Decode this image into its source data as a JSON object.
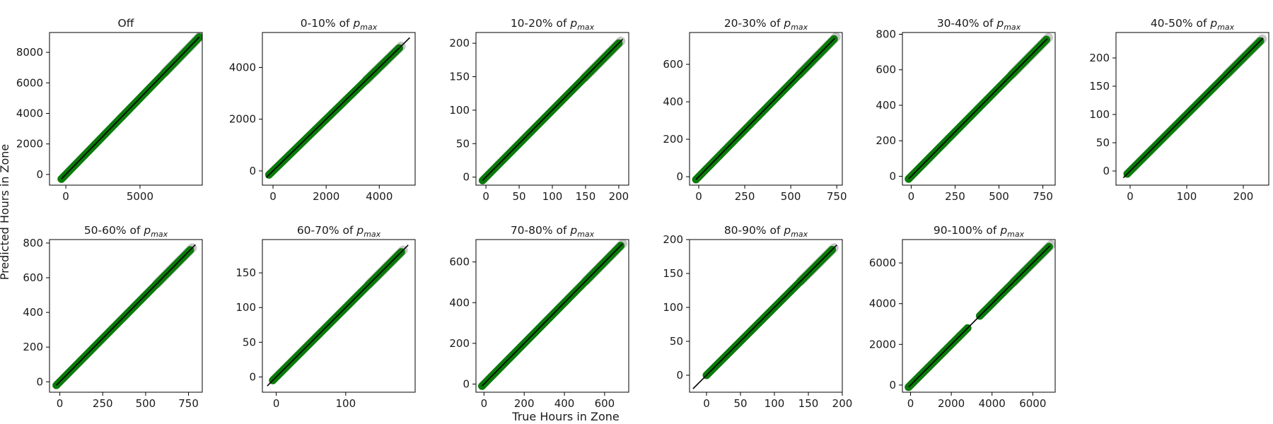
{
  "figure": {
    "xlabel": "True Hours in Zone",
    "ylabel": "Predicted Hours in Zone"
  },
  "colors": {
    "points": "#0a7a0a",
    "band": "#b0b0b0",
    "line": "#000000",
    "frame": "#000000"
  },
  "chart_data": [
    {
      "type": "scatter",
      "title": "Off",
      "title_prefix": "Off",
      "title_sub": "",
      "xlim": [
        -1100,
        9200
      ],
      "ylim": [
        -700,
        9300
      ],
      "xticks": [
        0,
        5000
      ],
      "yticks": [
        0,
        2000,
        4000,
        6000,
        8000
      ],
      "range": [
        -300,
        9000
      ],
      "line_range": [
        -300,
        9000
      ]
    },
    {
      "type": "scatter",
      "title": "0-10% of p_max",
      "title_prefix": "0-10% of ",
      "title_sub": "max",
      "xlim": [
        -400,
        5350
      ],
      "ylim": [
        -550,
        5350
      ],
      "xticks": [
        0,
        2000,
        4000
      ],
      "yticks": [
        0,
        2000,
        4000
      ],
      "range": [
        -150,
        4750
      ],
      "line_range": [
        -250,
        5150
      ]
    },
    {
      "type": "scatter",
      "title": "10-20% of p_max",
      "title_prefix": "10-20% of ",
      "title_sub": "max",
      "xlim": [
        -15,
        215
      ],
      "ylim": [
        -12,
        216
      ],
      "xticks": [
        0,
        50,
        100,
        150,
        200
      ],
      "yticks": [
        0,
        50,
        100,
        150,
        200
      ],
      "range": [
        -5,
        200
      ],
      "line_range": [
        -5,
        206
      ]
    },
    {
      "type": "scatter",
      "title": "20-30% of p_max",
      "title_prefix": "20-30% of ",
      "title_sub": "max",
      "xlim": [
        -50,
        780
      ],
      "ylim": [
        -45,
        770
      ],
      "xticks": [
        0,
        250,
        500,
        750
      ],
      "yticks": [
        0,
        200,
        400,
        600
      ],
      "range": [
        -15,
        735
      ],
      "line_range": [
        -15,
        740
      ]
    },
    {
      "type": "scatter",
      "title": "30-40% of p_max",
      "title_prefix": "30-40% of ",
      "title_sub": "max",
      "xlim": [
        -50,
        820
      ],
      "ylim": [
        -50,
        810
      ],
      "xticks": [
        0,
        250,
        500,
        750
      ],
      "yticks": [
        0,
        200,
        400,
        600,
        800
      ],
      "range": [
        -15,
        770
      ],
      "line_range": [
        -15,
        775
      ]
    },
    {
      "type": "scatter",
      "title": "40-50% of p_max",
      "title_prefix": "40-50% of ",
      "title_sub": "max",
      "xlim": [
        -25,
        245
      ],
      "ylim": [
        -25,
        245
      ],
      "xticks": [
        0,
        100,
        200
      ],
      "yticks": [
        0,
        50,
        100,
        150,
        200
      ],
      "range": [
        -5,
        230
      ],
      "line_range": [
        -12,
        235
      ]
    },
    {
      "type": "scatter",
      "title": "50-60% of p_max",
      "title_prefix": "50-60% of ",
      "title_sub": "max",
      "xlim": [
        -60,
        830
      ],
      "ylim": [
        -60,
        820
      ],
      "xticks": [
        0,
        250,
        500,
        750
      ],
      "yticks": [
        0,
        200,
        400,
        600,
        800
      ],
      "range": [
        -20,
        760
      ],
      "line_range": [
        -20,
        790
      ]
    },
    {
      "type": "scatter",
      "title": "60-70% of p_max",
      "title_prefix": "60-70% of ",
      "title_sub": "max",
      "xlim": [
        -20,
        200
      ],
      "ylim": [
        -22,
        198
      ],
      "xticks": [
        0,
        100
      ],
      "yticks": [
        0,
        50,
        100,
        150
      ],
      "range": [
        -5,
        180
      ],
      "line_range": [
        -13,
        190
      ]
    },
    {
      "type": "scatter",
      "title": "70-80% of p_max",
      "title_prefix": "70-80% of ",
      "title_sub": "max",
      "xlim": [
        -40,
        720
      ],
      "ylim": [
        -40,
        710
      ],
      "xticks": [
        0,
        200,
        400,
        600
      ],
      "yticks": [
        0,
        200,
        400,
        600
      ],
      "range": [
        -10,
        680
      ],
      "line_range": [
        -10,
        690
      ]
    },
    {
      "type": "scatter",
      "title": "80-90% of p_max",
      "title_prefix": "80-90% of ",
      "title_sub": "max",
      "xlim": [
        -25,
        200
      ],
      "ylim": [
        -25,
        200
      ],
      "xticks": [
        0,
        50,
        100,
        150,
        200
      ],
      "yticks": [
        0,
        50,
        100,
        150,
        200
      ],
      "range": [
        0,
        185
      ],
      "line_range": [
        -20,
        192
      ]
    },
    {
      "type": "scatter",
      "title": "90-100% of p_max",
      "title_prefix": "90-100% of ",
      "title_sub": "max",
      "xlim": [
        -400,
        7100
      ],
      "ylim": [
        -350,
        7150
      ],
      "xticks": [
        0,
        2000,
        4000,
        6000
      ],
      "yticks": [
        0,
        2000,
        4000,
        6000
      ],
      "range": [
        -100,
        6800
      ],
      "gap": [
        2800,
        3400
      ],
      "line_range": [
        -100,
        6850
      ]
    }
  ]
}
